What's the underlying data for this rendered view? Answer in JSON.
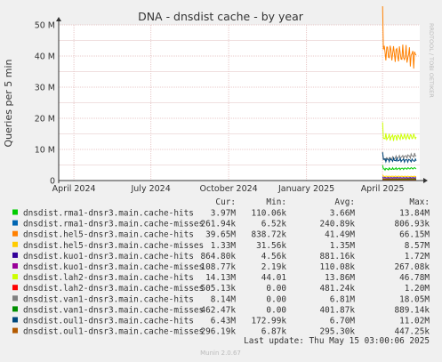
{
  "chart_data": {
    "type": "line",
    "title": "DNA - dnsdist cache - by year",
    "ylabel": "Queries per 5 min",
    "side_label": "RRDTOOL / TOBI OETIKER",
    "y_ticks": [
      "0",
      "10 M",
      "20 M",
      "30 M",
      "40 M",
      "50 M"
    ],
    "ylim": [
      0,
      50000000
    ],
    "x_ticks": [
      {
        "label": "April 2024",
        "date": "2024-04-01"
      },
      {
        "label": "July 2024",
        "date": "2024-07-01"
      },
      {
        "label": "October 2024",
        "date": "2024-10-01"
      },
      {
        "label": "January 2025",
        "date": "2025-01-01"
      },
      {
        "label": "April 2025",
        "date": "2025-04-01"
      }
    ],
    "xlim": [
      "2024-03-14",
      "2025-05-15"
    ],
    "data_start": "2025-04-01",
    "grid": true,
    "legend_headers": [
      "Cur:",
      "Min:",
      "Avg:",
      "Max:"
    ],
    "series": [
      {
        "name": "dnsdist.rma1-dnsr3.main.cache-hits",
        "color": "#00cc00",
        "cur": "3.97M",
        "min": "110.06k",
        "avg": "3.66M",
        "max": "13.84M"
      },
      {
        "name": "dnsdist.rma1-dnsr3.main.cache-misses",
        "color": "#0066b3",
        "cur": "261.94k",
        "min": "6.52k",
        "avg": "240.89k",
        "max": "806.93k"
      },
      {
        "name": "dnsdist.hel5-dnsr3.main.cache-hits",
        "color": "#ff8000",
        "cur": "39.65M",
        "min": "838.72k",
        "avg": "41.49M",
        "max": "66.15M"
      },
      {
        "name": "dnsdist.hel5-dnsr3.main.cache-misses",
        "color": "#ffcc00",
        "cur": "1.33M",
        "min": "31.56k",
        "avg": "1.35M",
        "max": "8.57M"
      },
      {
        "name": "dnsdist.kuo1-dnsr3.main.cache-hits",
        "color": "#330099",
        "cur": "864.80k",
        "min": "4.56k",
        "avg": "881.16k",
        "max": "1.72M"
      },
      {
        "name": "dnsdist.kuo1-dnsr3.main.cache-misses",
        "color": "#990099",
        "cur": "108.77k",
        "min": "2.19k",
        "avg": "110.08k",
        "max": "267.08k"
      },
      {
        "name": "dnsdist.lah2-dnsr3.main.cache-hits",
        "color": "#ccff00",
        "cur": "14.13M",
        "min": "44.01",
        "avg": "13.86M",
        "max": "46.78M"
      },
      {
        "name": "dnsdist.lah2-dnsr3.main.cache-misses",
        "color": "#ff0000",
        "cur": "505.13k",
        "min": "0.00",
        "avg": "481.24k",
        "max": "1.20M"
      },
      {
        "name": "dnsdist.van1-dnsr3.main.cache-hits",
        "color": "#808080",
        "cur": "8.14M",
        "min": "0.00",
        "avg": "6.81M",
        "max": "18.05M"
      },
      {
        "name": "dnsdist.van1-dnsr3.main.cache-misses",
        "color": "#008f00",
        "cur": "462.47k",
        "min": "0.00",
        "avg": "401.87k",
        "max": "889.14k"
      },
      {
        "name": "dnsdist.oul1-dnsr3.main.cache-hits",
        "color": "#00487d",
        "cur": "6.43M",
        "min": "172.99k",
        "avg": "6.70M",
        "max": "11.02M"
      },
      {
        "name": "dnsdist.oul1-dnsr3.main.cache-misses",
        "color": "#b35a00",
        "cur": "296.19k",
        "min": "6.87k",
        "avg": "295.30k",
        "max": "447.25k"
      }
    ]
  },
  "footer": {
    "last_update": "Last update: Thu May 15 03:00:06 2025",
    "munin": "Munin 2.0.67"
  }
}
